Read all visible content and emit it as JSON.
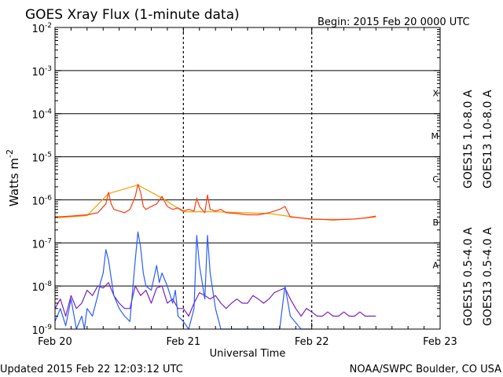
{
  "header": {
    "title": "GOES Xray Flux (1-minute data)",
    "begin": "Begin:  2015 Feb 20 0000 UTC"
  },
  "footer": {
    "updated": "Updated 2015 Feb 22 12:03:12 UTC",
    "credit": "NOAA/SWPC Boulder, CO USA"
  },
  "chart_data": {
    "type": "line",
    "title": "GOES Xray Flux (1-minute data)",
    "xlabel": "Universal Time",
    "ylabel": "Watts m",
    "ylabel_sup": "-2",
    "y_scale": "log",
    "ylim": [
      1e-09,
      0.01
    ],
    "xlim": [
      "2015-02-20T00:00",
      "2015-02-23T00:00"
    ],
    "grid": "horizontal lines at each decade; dashed vertical lines at day boundaries",
    "x_ticks": [
      "Feb 20",
      "Feb 21",
      "Feb 22",
      "Feb 23"
    ],
    "y_ticks": [
      {
        "value": 0.01,
        "base": "10",
        "exp": "-2"
      },
      {
        "value": 0.001,
        "base": "10",
        "exp": "-3"
      },
      {
        "value": 0.0001,
        "base": "10",
        "exp": "-4"
      },
      {
        "value": 1e-05,
        "base": "10",
        "exp": "-5"
      },
      {
        "value": 1e-06,
        "base": "10",
        "exp": "-6"
      },
      {
        "value": 1e-07,
        "base": "10",
        "exp": "-7"
      },
      {
        "value": 1e-08,
        "base": "10",
        "exp": "-8"
      },
      {
        "value": 1e-09,
        "base": "10",
        "exp": "-9"
      }
    ],
    "flare_classes": [
      {
        "label": "X",
        "value": 0.0001
      },
      {
        "label": "M",
        "value": 1e-05
      },
      {
        "label": "C",
        "value": 1e-06
      },
      {
        "label": "B",
        "value": 1e-07
      },
      {
        "label": "A",
        "value": 1e-08
      }
    ],
    "legend_placement": "right, vertical",
    "legend": [
      {
        "text": "GOES15 1.0-8.0 A",
        "color": "#ff3a10"
      },
      {
        "text": "GOES13 1.0-8.0 A",
        "color": "#f0a000"
      },
      {
        "text": "GOES15 0.5-4.0 A",
        "color": "#2a5cff"
      },
      {
        "text": "GOES13 0.5-4.0 A",
        "color": "#7a20c0"
      }
    ],
    "series": [
      {
        "name": "GOES15 1.0-8.0 A",
        "color": "#ff3a10",
        "x_hours": [
          0,
          3,
          6,
          8,
          9.5,
          10,
          10.5,
          11,
          12,
          13,
          14,
          15,
          15.5,
          16,
          16.5,
          17,
          18,
          19,
          20,
          21,
          22,
          23,
          24,
          25,
          26,
          26.5,
          27,
          28,
          28.5,
          29,
          30,
          31,
          32,
          34,
          36,
          38,
          40,
          42,
          43,
          44,
          46,
          48,
          50,
          52,
          54,
          56,
          58,
          60
        ],
        "values": [
          4e-07,
          4.2e-07,
          4.5e-07,
          5e-07,
          8e-07,
          1.5e-06,
          8e-07,
          6e-07,
          5.5e-07,
          5e-07,
          6e-07,
          1.2e-06,
          2.3e-06,
          1.5e-06,
          7e-07,
          6e-07,
          7e-07,
          8e-07,
          1.2e-06,
          7e-07,
          6e-07,
          6.5e-07,
          5.5e-07,
          6e-07,
          5.5e-07,
          1.1e-06,
          7e-07,
          5e-07,
          1.3e-06,
          6e-07,
          5.5e-07,
          6e-07,
          5e-07,
          4.8e-07,
          4.5e-07,
          4.5e-07,
          5e-07,
          6e-07,
          7e-07,
          4e-07,
          3.8e-07,
          3.6e-07,
          3.5e-07,
          3.4e-07,
          3.5e-07,
          3.6e-07,
          3.8e-07,
          4.2e-07
        ]
      },
      {
        "name": "GOES13 1.0-8.0 A",
        "color": "#f0a000",
        "x_hours": [
          0,
          6,
          10,
          15.5,
          20,
          24,
          30,
          40,
          48,
          55,
          60
        ],
        "values": [
          3.8e-07,
          4.3e-07,
          1.4e-06,
          2.2e-06,
          1.1e-06,
          5.3e-07,
          5.3e-07,
          4.8e-07,
          3.5e-07,
          3.5e-07,
          4e-07
        ]
      },
      {
        "name": "GOES15 0.5-4.0 A",
        "color": "#2a5cff",
        "x_hours": [
          0,
          1,
          2,
          3,
          4,
          5,
          5.5,
          6,
          7,
          8,
          8.5,
          9,
          9.5,
          10,
          10.5,
          11,
          12,
          13,
          14,
          15,
          15.5,
          16,
          16.5,
          17,
          18,
          19,
          19.5,
          20,
          21,
          22,
          22.5,
          23,
          24,
          25,
          26,
          26.5,
          27,
          28,
          28.5,
          29,
          30,
          31,
          32,
          34,
          36,
          38,
          40,
          42,
          43,
          44,
          46,
          48
        ],
        "values": [
          1.5e-09,
          3e-09,
          1.2e-09,
          5e-09,
          1e-09,
          2e-09,
          1e-09,
          3e-09,
          2e-09,
          6e-09,
          1.2e-08,
          2e-08,
          7e-08,
          4e-08,
          1.5e-08,
          6e-09,
          3e-09,
          2e-09,
          1.5e-09,
          4e-08,
          1.8e-07,
          8e-08,
          2e-08,
          1e-08,
          8e-09,
          3e-08,
          1.2e-08,
          2e-08,
          1e-08,
          4e-09,
          8e-09,
          2e-09,
          1.5e-09,
          1e-09,
          3e-09,
          1.5e-07,
          3e-08,
          5e-09,
          1.5e-07,
          2e-08,
          3e-09,
          1e-09,
          1e-09,
          1e-09,
          1e-09,
          1e-09,
          1e-09,
          1e-09,
          1e-08,
          2e-09,
          1e-09,
          1e-09
        ]
      },
      {
        "name": "GOES13 0.5-4.0 A",
        "color": "#7a20c0",
        "x_hours": [
          0,
          1,
          2,
          3,
          4,
          5,
          6,
          7,
          8,
          9,
          10,
          11,
          12,
          13,
          14,
          15,
          16,
          17,
          18,
          19,
          20,
          21,
          22,
          23,
          24,
          25,
          26,
          27,
          28,
          29,
          30,
          31,
          32,
          33,
          34,
          35,
          36,
          37,
          38,
          39,
          40,
          41,
          42,
          43,
          44,
          45,
          46,
          47,
          48,
          49,
          50,
          51,
          52,
          53,
          54,
          55,
          56,
          57,
          58,
          59,
          60
        ],
        "values": [
          3e-09,
          5e-09,
          2e-09,
          6e-09,
          3e-09,
          4e-09,
          8e-09,
          6e-09,
          1e-08,
          9e-09,
          1.2e-08,
          6e-09,
          4e-09,
          3e-09,
          3e-09,
          1e-08,
          6e-09,
          8e-09,
          4e-09,
          9e-09,
          1e-08,
          4e-09,
          5e-09,
          3e-09,
          3e-09,
          2e-09,
          4e-09,
          7e-09,
          6e-09,
          5e-09,
          6e-09,
          4e-09,
          3e-09,
          4e-09,
          5e-09,
          4e-09,
          4e-09,
          6e-09,
          5e-09,
          4e-09,
          5e-09,
          7e-09,
          8e-09,
          9e-09,
          5e-09,
          3e-09,
          2e-09,
          3e-09,
          2.5e-09,
          2e-09,
          2e-09,
          2.5e-09,
          2e-09,
          2e-09,
          2.5e-09,
          2e-09,
          2e-09,
          2.5e-09,
          2e-09,
          2e-09,
          2e-09
        ]
      }
    ]
  }
}
